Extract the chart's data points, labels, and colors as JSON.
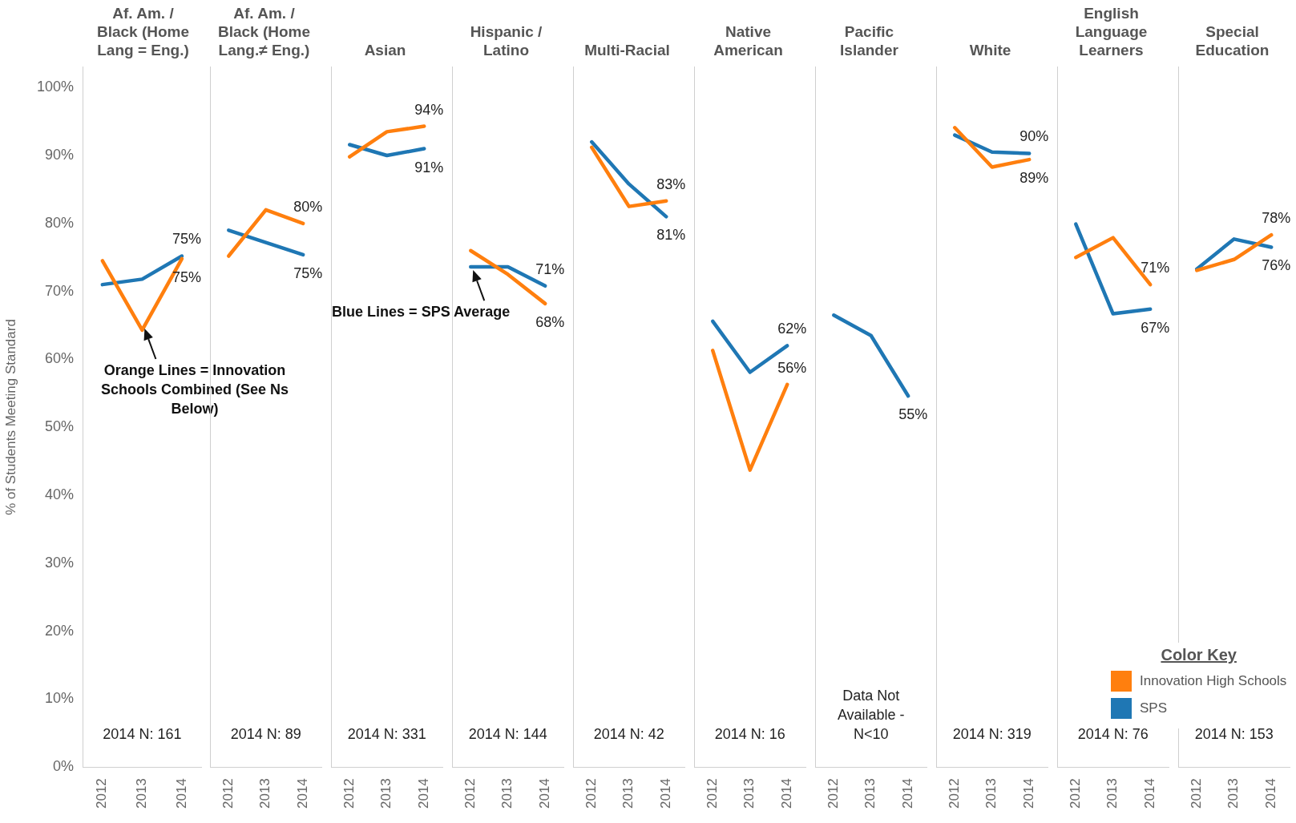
{
  "chart_data": [
    {
      "type": "line",
      "title": "Af. Am. / Black (Home Lang = Eng.)",
      "ylabel": "% of Students Meeting Standard",
      "categories": [
        "2012",
        "2013",
        "2014"
      ],
      "series": [
        {
          "color": "#ff7f0e",
          "values": [
            74.5,
            64.3,
            74.8
          ],
          "value_labels": [
            null,
            null,
            "75%"
          ]
        },
        {
          "color": "#1f77b4",
          "values": [
            71,
            71.8,
            75.2
          ],
          "value_labels": [
            null,
            null,
            "75%"
          ]
        }
      ],
      "ylim": [
        0,
        103
      ],
      "yticks": [
        {
          "value": 0,
          "label": "0%"
        },
        {
          "value": 10,
          "label": "10%"
        },
        {
          "value": 20,
          "label": "20%"
        },
        {
          "value": 30,
          "label": "30%"
        },
        {
          "value": 40,
          "label": "40%"
        },
        {
          "value": 50,
          "label": "50%"
        },
        {
          "value": 60,
          "label": "60%"
        },
        {
          "value": 70,
          "label": "70%"
        },
        {
          "value": 80,
          "label": "80%"
        },
        {
          "value": 90,
          "label": "90%"
        },
        {
          "value": 100,
          "label": "100%"
        }
      ],
      "grid": false,
      "marker": "none",
      "annotations": [
        "2014 N: 161",
        {
          "text": "Orange Lines = Innovation Schools Combined (See Ns Below)",
          "x": "2013",
          "y": 65
        }
      ]
    },
    {
      "type": "line",
      "title": "Af. Am. / Black (Home Lang.≠ Eng.)",
      "categories": [
        "2012",
        "2013",
        "2014"
      ],
      "series": [
        {
          "color": "#ff7f0e",
          "values": [
            75.2,
            82,
            80
          ],
          "value_labels": [
            null,
            null,
            "80%"
          ]
        },
        {
          "color": "#1f77b4",
          "values": [
            79,
            77.2,
            75.4
          ],
          "value_labels": [
            null,
            null,
            "75%"
          ]
        }
      ],
      "ylim": [
        0,
        103
      ],
      "tick_labels": "x",
      "grid": false,
      "marker": "none",
      "annotations": [
        "2014 N: 89"
      ]
    },
    {
      "type": "line",
      "title": "Asian",
      "categories": [
        "2012",
        "2013",
        "2014"
      ],
      "series": [
        {
          "color": "#ff7f0e",
          "values": [
            89.8,
            93.5,
            94.3
          ],
          "value_labels": [
            null,
            null,
            "94%"
          ]
        },
        {
          "color": "#1f77b4",
          "values": [
            91.6,
            90,
            91
          ],
          "value_labels": [
            null,
            null,
            "91%"
          ]
        }
      ],
      "ylim": [
        0,
        103
      ],
      "tick_labels": "x",
      "grid": false,
      "marker": "none",
      "annotations": [
        "2014 N: 331"
      ]
    },
    {
      "type": "line",
      "title": "Hispanic / Latino",
      "categories": [
        "2012",
        "2013",
        "2014"
      ],
      "series": [
        {
          "color": "#ff7f0e",
          "values": [
            76,
            72.5,
            68.2
          ],
          "value_labels": [
            null,
            null,
            "68%"
          ]
        },
        {
          "color": "#1f77b4",
          "values": [
            73.6,
            73.6,
            70.8
          ],
          "value_labels": [
            null,
            null,
            "71%"
          ]
        }
      ],
      "ylim": [
        0,
        103
      ],
      "tick_labels": "x",
      "grid": false,
      "marker": "none",
      "annotations": [
        "2014 N: 144",
        {
          "text": "Blue Lines = SPS Average",
          "x": "2012",
          "y": 73.6
        }
      ]
    },
    {
      "type": "line",
      "title": "Multi-Racial",
      "categories": [
        "2012",
        "2013",
        "2014"
      ],
      "series": [
        {
          "color": "#ff7f0e",
          "values": [
            91.2,
            82.5,
            83.3
          ],
          "value_labels": [
            null,
            null,
            "83%"
          ]
        },
        {
          "color": "#1f77b4",
          "values": [
            92,
            85.8,
            81
          ],
          "value_labels": [
            null,
            null,
            "81%"
          ]
        }
      ],
      "ylim": [
        0,
        103
      ],
      "tick_labels": "x",
      "grid": false,
      "marker": "none",
      "annotations": [
        "2014 N: 42"
      ]
    },
    {
      "type": "line",
      "title": "Native American",
      "categories": [
        "2012",
        "2013",
        "2014"
      ],
      "series": [
        {
          "color": "#ff7f0e",
          "values": [
            61.3,
            43.7,
            56.3
          ],
          "value_labels": [
            null,
            null,
            "56%"
          ]
        },
        {
          "color": "#1f77b4",
          "values": [
            65.6,
            58.1,
            62
          ],
          "value_labels": [
            null,
            null,
            "62%"
          ]
        }
      ],
      "ylim": [
        0,
        103
      ],
      "tick_labels": "x",
      "grid": false,
      "marker": "none",
      "annotations": [
        "2014 N: 16"
      ]
    },
    {
      "type": "line",
      "title": "Pacific Islander",
      "categories": [
        "2012",
        "2013",
        "2014"
      ],
      "series": [
        {
          "color": "#1f77b4",
          "values": [
            66.5,
            63.5,
            54.6
          ],
          "value_labels": [
            null,
            null,
            "55%"
          ]
        }
      ],
      "ylim": [
        0,
        103
      ],
      "tick_labels": "x",
      "grid": false,
      "marker": "none",
      "annotations": [
        "Data Not Available - N<10"
      ]
    },
    {
      "type": "line",
      "title": "White",
      "categories": [
        "2012",
        "2013",
        "2014"
      ],
      "series": [
        {
          "color": "#ff7f0e",
          "values": [
            94.1,
            88.3,
            89.4
          ],
          "value_labels": [
            null,
            null,
            "89%"
          ]
        },
        {
          "color": "#1f77b4",
          "values": [
            93,
            90.5,
            90.3
          ],
          "value_labels": [
            null,
            null,
            "90%"
          ]
        }
      ],
      "ylim": [
        0,
        103
      ],
      "tick_labels": "x",
      "grid": false,
      "marker": "none",
      "annotations": [
        "2014 N: 319"
      ]
    },
    {
      "type": "line",
      "title": "English Language Learners",
      "categories": [
        "2012",
        "2013",
        "2014"
      ],
      "series": [
        {
          "color": "#ff7f0e",
          "values": [
            75,
            77.9,
            71
          ],
          "value_labels": [
            null,
            null,
            "71%"
          ]
        },
        {
          "color": "#1f77b4",
          "values": [
            79.9,
            66.7,
            67.4
          ],
          "value_labels": [
            null,
            null,
            "67%"
          ]
        }
      ],
      "ylim": [
        0,
        103
      ],
      "tick_labels": "x",
      "grid": false,
      "marker": "none",
      "annotations": [
        "2014 N: 76"
      ]
    },
    {
      "type": "line",
      "title": "Special Education",
      "categories": [
        "2012",
        "2013",
        "2014"
      ],
      "series": [
        {
          "name": "Innovation High Schools",
          "color": "#ff7f0e",
          "values": [
            73.1,
            74.7,
            78.3
          ],
          "value_labels": [
            null,
            null,
            "78%"
          ]
        },
        {
          "name": "SPS",
          "color": "#1f77b4",
          "values": [
            73.3,
            77.7,
            76.5
          ],
          "value_labels": [
            null,
            null,
            "76%"
          ]
        }
      ],
      "ylim": [
        0,
        103
      ],
      "tick_labels": "x",
      "grid": false,
      "marker": "none",
      "legend": "bottom",
      "legend_title": "Color Key",
      "annotations": [
        "2014 N: 153"
      ]
    }
  ]
}
